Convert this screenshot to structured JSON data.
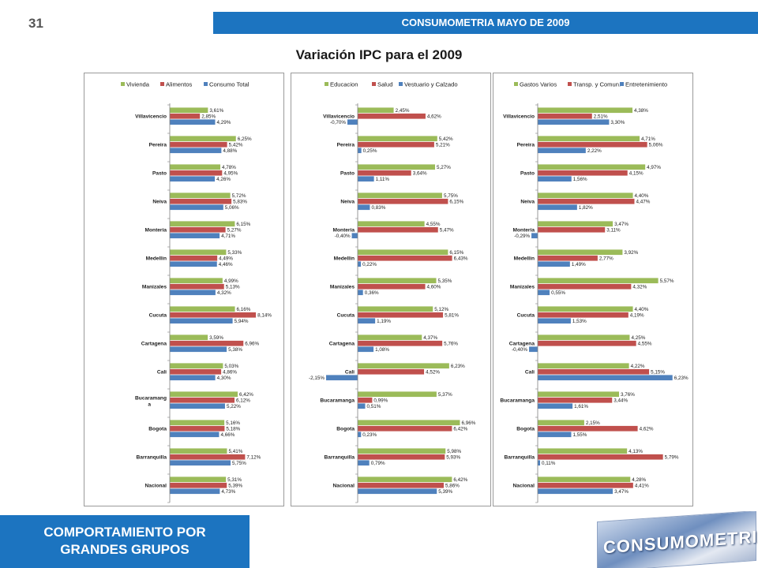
{
  "page_number": "31",
  "header": {
    "title": "CONSUMOMETRIA MAYO DE 2009"
  },
  "main_title": "Variación IPC para el 2009",
  "footer": {
    "line1": "COMPORTAMIENTO POR",
    "line2": "GRANDES GRUPOS"
  },
  "logo": {
    "text": "CONSUMOMETRIA"
  },
  "colors": {
    "green": "#9bbb59",
    "red": "#c0504d",
    "blue": "#4f81bd"
  },
  "chart_data": [
    {
      "type": "bar",
      "orientation": "horizontal",
      "legend_position": "top",
      "categories": [
        "Villavicencio",
        "Pereira",
        "Pasto",
        "Neiva",
        "Monteria",
        "Medellin",
        "Manizales",
        "Cucuta",
        "Cartagena",
        "Cali",
        "Bucaramang a",
        "Bogota",
        "Barranquilla",
        "Nacional"
      ],
      "series": [
        {
          "name": "Vivienda",
          "color": "#9bbb59",
          "values": [
            3.61,
            6.25,
            4.78,
            5.72,
            6.15,
            5.33,
            4.99,
            6.16,
            3.59,
            5.03,
            6.42,
            5.16,
            5.41,
            5.31
          ],
          "labels": [
            "3,61%",
            "6,25%",
            "4,78%",
            "5,72%",
            "6,15%",
            "5,33%",
            "4,99%",
            "6,16%",
            "3,59%",
            "5,03%",
            "6,42%",
            "5,16%",
            "5,41%",
            "5,31%"
          ]
        },
        {
          "name": "Alimentos",
          "color": "#c0504d",
          "values": [
            2.85,
            5.42,
            4.95,
            5.83,
            5.27,
            4.49,
            5.13,
            8.14,
            6.96,
            4.86,
            6.12,
            5.18,
            7.12,
            5.39
          ],
          "labels": [
            "2,85%",
            "5,42%",
            "4,95%",
            "5,83%",
            "5,27%",
            "4,49%",
            "5,13%",
            "8,14%",
            "6,96%",
            "4,86%",
            "6,12%",
            "5,18%",
            "7,12%",
            "5,39%"
          ]
        },
        {
          "name": "Consumo Total",
          "color": "#4f81bd",
          "values": [
            4.29,
            4.88,
            4.26,
            5.06,
            4.71,
            4.46,
            4.32,
            5.94,
            5.38,
            4.3,
            5.22,
            4.66,
            5.75,
            4.73
          ],
          "labels": [
            "4,29%",
            "4,88%",
            "4,26%",
            "5,06%",
            "4,71%",
            "4,46%",
            "4,32%",
            "5,94%",
            "5,38%",
            "4,30%",
            "5,22%",
            "4,66%",
            "5,75%",
            "4,73%"
          ]
        }
      ]
    },
    {
      "type": "bar",
      "orientation": "horizontal",
      "legend_position": "top",
      "categories": [
        "Villavicencio",
        "Pereira",
        "Pasto",
        "Neiva",
        "Monteria",
        "Medellin",
        "Manizales",
        "Cucuta",
        "Cartagena",
        "Cali",
        "Bucaramanga",
        "Bogota",
        "Barranquilla",
        "Nacional"
      ],
      "series": [
        {
          "name": "Educacion",
          "color": "#9bbb59",
          "values": [
            2.45,
            5.42,
            5.27,
            5.75,
            4.55,
            6.15,
            5.35,
            5.12,
            4.37,
            6.23,
            5.37,
            6.96,
            5.98,
            6.42
          ],
          "labels": [
            "2,45%",
            "5,42%",
            "5,27%",
            "5,75%",
            "4,55%",
            "6,15%",
            "5,35%",
            "5,12%",
            "4,37%",
            "6,23%",
            "5,37%",
            "6,96%",
            "5,98%",
            "6,42%"
          ]
        },
        {
          "name": "Salud",
          "color": "#c0504d",
          "values": [
            4.62,
            5.21,
            3.64,
            6.15,
            5.47,
            6.43,
            4.6,
            5.81,
            5.76,
            4.52,
            0.99,
            6.42,
            5.93,
            5.86
          ],
          "labels": [
            "4,62%",
            "5,21%",
            "3,64%",
            "6,15%",
            "5,47%",
            "6,43%",
            "4,60%",
            "5,81%",
            "5,76%",
            "4,52%",
            "0,99%",
            "6,42%",
            "5,93%",
            "5,86%"
          ]
        },
        {
          "name": "Vestuario y Calzado",
          "color": "#4f81bd",
          "values": [
            -0.7,
            0.25,
            1.11,
            0.83,
            -0.4,
            0.22,
            0.36,
            1.19,
            1.08,
            -2.15,
            0.51,
            0.23,
            0.79,
            5.39
          ],
          "labels": [
            "-0,70%",
            "0,25%",
            "1,11%",
            "0,83%",
            "-0,40%",
            "0,22%",
            "0,36%",
            "1,19%",
            "1,08%",
            "-2,15%",
            "0,51%",
            "0,23%",
            "0,79%",
            "5,39%"
          ]
        }
      ]
    },
    {
      "type": "bar",
      "orientation": "horizontal",
      "legend_position": "top",
      "categories": [
        "Villavicencio",
        "Pereira",
        "Pasto",
        "Neiva",
        "Monteria",
        "Medellin",
        "Manizales",
        "Cucuta",
        "Cartagena",
        "Cali",
        "Bucaramanga",
        "Bogota",
        "Barranquilla",
        "Nacional"
      ],
      "series": [
        {
          "name": "Gastos Varios",
          "color": "#9bbb59",
          "values": [
            4.38,
            4.71,
            4.97,
            4.4,
            3.47,
            3.92,
            5.57,
            4.4,
            4.25,
            4.22,
            3.76,
            2.15,
            4.13,
            4.28
          ],
          "labels": [
            "4,38%",
            "4,71%",
            "4,97%",
            "4,40%",
            "3,47%",
            "3,92%",
            "5,57%",
            "4,40%",
            "4,25%",
            "4,22%",
            "3,76%",
            "2,15%",
            "4,13%",
            "4,28%"
          ]
        },
        {
          "name": "Transp. y Comun.",
          "color": "#c0504d",
          "values": [
            2.51,
            5.06,
            4.15,
            4.47,
            3.11,
            2.77,
            4.32,
            4.19,
            4.55,
            5.15,
            3.44,
            4.62,
            5.79,
            4.41
          ],
          "labels": [
            "2,51%",
            "5,06%",
            "4,15%",
            "4,47%",
            "3,11%",
            "2,77%",
            "4,32%",
            "4,19%",
            "4,55%",
            "5,15%",
            "3,44%",
            "4,62%",
            "5,79%",
            "4,41%"
          ]
        },
        {
          "name": "Entretenimiento",
          "color": "#4f81bd",
          "values": [
            3.3,
            2.22,
            1.56,
            1.82,
            -0.29,
            1.49,
            0.55,
            1.53,
            -0.4,
            6.23,
            1.61,
            1.55,
            0.11,
            3.47
          ],
          "labels": [
            "3,30%",
            "2,22%",
            "1,56%",
            "1,82%",
            "-0,29%",
            "1,49%",
            "0,55%",
            "1,53%",
            "-0,40%",
            "6,23%",
            "1,61%",
            "1,55%",
            "0,11%",
            "3,47%"
          ]
        }
      ]
    }
  ]
}
